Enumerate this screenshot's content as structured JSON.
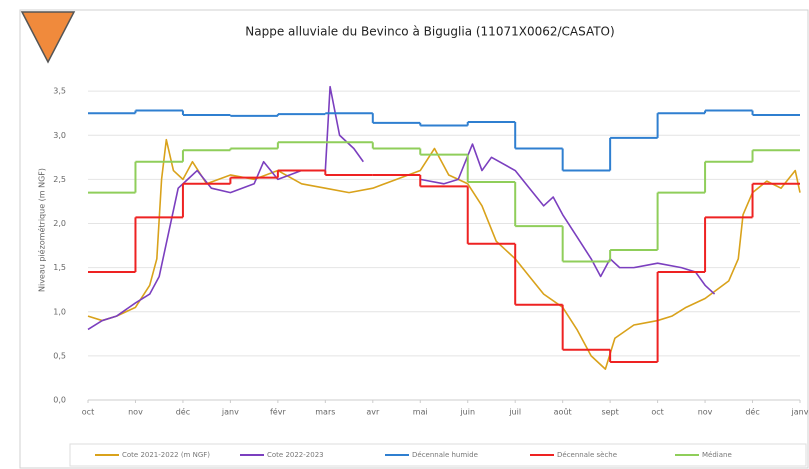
{
  "chart_data": {
    "type": "line",
    "title": "Nappe alluviale du Bevinco à Biguglia (11071X0062/CASATO)",
    "y_label": "Niveau piézométrique (m NGF)",
    "xlim": [
      0,
      15
    ],
    "ylim": [
      0,
      4
    ],
    "xticks": [
      {
        "value": 0,
        "label": "oct"
      },
      {
        "value": 1,
        "label": "nov"
      },
      {
        "value": 2,
        "label": "déc"
      },
      {
        "value": 3,
        "label": "janv"
      },
      {
        "value": 4,
        "label": "févr"
      },
      {
        "value": 5,
        "label": "mars"
      },
      {
        "value": 6,
        "label": "avr"
      },
      {
        "value": 7,
        "label": "mai"
      },
      {
        "value": 8,
        "label": "juin"
      },
      {
        "value": 9,
        "label": "juil"
      },
      {
        "value": 10,
        "label": "août"
      },
      {
        "value": 11,
        "label": "sept"
      },
      {
        "value": 12,
        "label": "oct"
      },
      {
        "value": 13,
        "label": "nov"
      },
      {
        "value": 14,
        "label": "déc"
      },
      {
        "value": 15,
        "label": "janv"
      }
    ],
    "yticks": [
      {
        "value": 0,
        "label": "0,0"
      },
      {
        "value": 0.5,
        "label": "0,5"
      },
      {
        "value": 1,
        "label": "1,0"
      },
      {
        "value": 1.5,
        "label": "1,5"
      },
      {
        "value": 2,
        "label": "2,0"
      },
      {
        "value": 2.5,
        "label": "2,5"
      },
      {
        "value": 3,
        "label": "3,0"
      },
      {
        "value": 3.5,
        "label": "3,5"
      }
    ],
    "grid": true,
    "series": [
      {
        "name": "Cote 2021-2022 (m NGF)",
        "color": "#d9a21b",
        "x": [
          0,
          0.3,
          0.6,
          1.0,
          1.3,
          1.45,
          1.55,
          1.65,
          1.8,
          2.0,
          2.2,
          2.5,
          3.0,
          3.5,
          4.0,
          4.5,
          5.0,
          5.5,
          6.0,
          6.5,
          7.0,
          7.3,
          7.6,
          8.0,
          8.3,
          8.6,
          9.0,
          9.3,
          9.6,
          10.0,
          10.3,
          10.6,
          10.9,
          11.1,
          11.5,
          12.0,
          12.3,
          12.6,
          13.0,
          13.5,
          13.7,
          13.8,
          14.0,
          14.3,
          14.6,
          14.9,
          15.0
        ],
        "values": [
          0.95,
          0.9,
          0.95,
          1.05,
          1.3,
          1.6,
          2.5,
          2.95,
          2.6,
          2.5,
          2.7,
          2.45,
          2.55,
          2.5,
          2.6,
          2.45,
          2.4,
          2.35,
          2.4,
          2.5,
          2.6,
          2.85,
          2.55,
          2.45,
          2.2,
          1.8,
          1.6,
          1.4,
          1.2,
          1.05,
          0.8,
          0.5,
          0.35,
          0.7,
          0.85,
          0.9,
          0.95,
          1.05,
          1.15,
          1.35,
          1.6,
          2.1,
          2.35,
          2.48,
          2.4,
          2.6,
          2.35
        ]
      },
      {
        "name": "Cote 2022-2023",
        "color": "#7b3fbf",
        "x": [
          0,
          0.3,
          0.6,
          1.0,
          1.3,
          1.5,
          1.7,
          1.9,
          2.1,
          2.3,
          2.6,
          3.0,
          3.5,
          3.7,
          4.0,
          4.5,
          5.0,
          5.1,
          5.3,
          5.6,
          5.8,
          6.4,
          7.0,
          7.5,
          7.8,
          8.1,
          8.3,
          8.5,
          9.0,
          9.3,
          9.6,
          9.8,
          10.0,
          10.3,
          10.6,
          10.8,
          11.0,
          11.2,
          11.5,
          12.0,
          12.5,
          12.8,
          13.0,
          13.2
        ],
        "values": [
          0.8,
          0.9,
          0.95,
          1.1,
          1.2,
          1.4,
          1.9,
          2.4,
          2.5,
          2.6,
          2.4,
          2.35,
          2.45,
          2.7,
          2.5,
          2.6,
          2.6,
          3.55,
          3.0,
          2.85,
          2.7,
          null,
          2.5,
          2.45,
          2.5,
          2.9,
          2.6,
          2.75,
          2.6,
          2.4,
          2.2,
          2.3,
          2.1,
          1.85,
          1.6,
          1.4,
          1.6,
          1.5,
          1.5,
          1.55,
          1.5,
          1.45,
          1.3,
          1.2
        ]
      },
      {
        "name": "Décennale humide",
        "color": "#2f7fd0",
        "step": true,
        "x": [
          0,
          1,
          2,
          3,
          4,
          5,
          6,
          7,
          8,
          9,
          10,
          11,
          12,
          13,
          14
        ],
        "values": [
          3.25,
          3.28,
          3.23,
          3.22,
          3.24,
          3.25,
          3.14,
          3.11,
          3.15,
          2.85,
          2.6,
          2.97,
          3.25,
          3.28,
          3.23
        ]
      },
      {
        "name": "Décennale sèche",
        "color": "#ee2222",
        "step": true,
        "x": [
          0,
          1,
          2,
          3,
          4,
          5,
          6,
          7,
          8,
          9,
          10,
          11,
          12,
          13,
          14
        ],
        "values": [
          1.45,
          2.07,
          2.45,
          2.52,
          2.6,
          2.55,
          2.55,
          2.42,
          1.77,
          1.08,
          0.57,
          0.43,
          1.45,
          2.07,
          2.45
        ]
      },
      {
        "name": "Médiane",
        "color": "#8fce5a",
        "step": true,
        "x": [
          0,
          1,
          2,
          3,
          4,
          5,
          6,
          7,
          8,
          9,
          10,
          11,
          12,
          13,
          14
        ],
        "values": [
          2.35,
          2.7,
          2.83,
          2.85,
          2.92,
          2.92,
          2.85,
          2.78,
          2.47,
          1.97,
          1.57,
          1.7,
          2.35,
          2.7,
          2.83
        ]
      }
    ]
  }
}
